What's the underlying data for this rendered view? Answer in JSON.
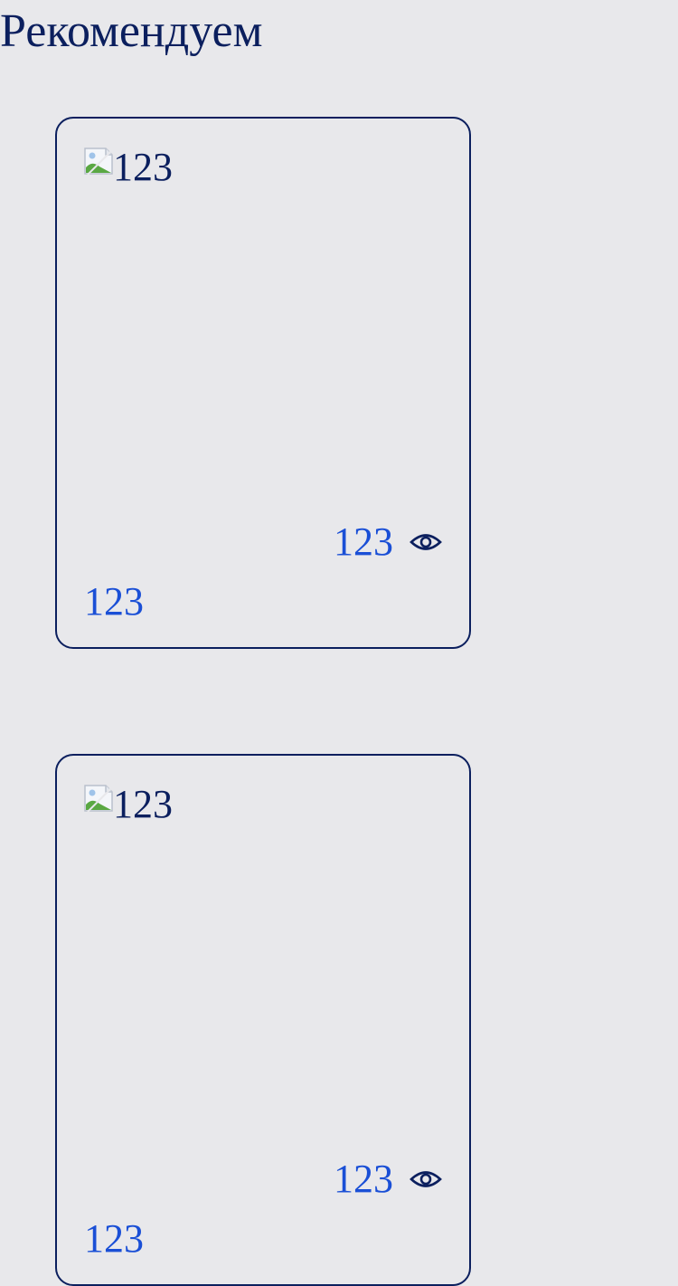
{
  "section": {
    "title": "Рекомендуем"
  },
  "cards": [
    {
      "image_alt": "123",
      "views": "123",
      "label": "123"
    },
    {
      "image_alt": "123",
      "views": "123",
      "label": "123"
    }
  ],
  "colors": {
    "text_dark": "#0b1f5e",
    "link_blue": "#1a4fd6",
    "background": "#e8e8eb"
  },
  "icons": {
    "views": "eye-icon",
    "image_placeholder": "broken-image-icon"
  }
}
